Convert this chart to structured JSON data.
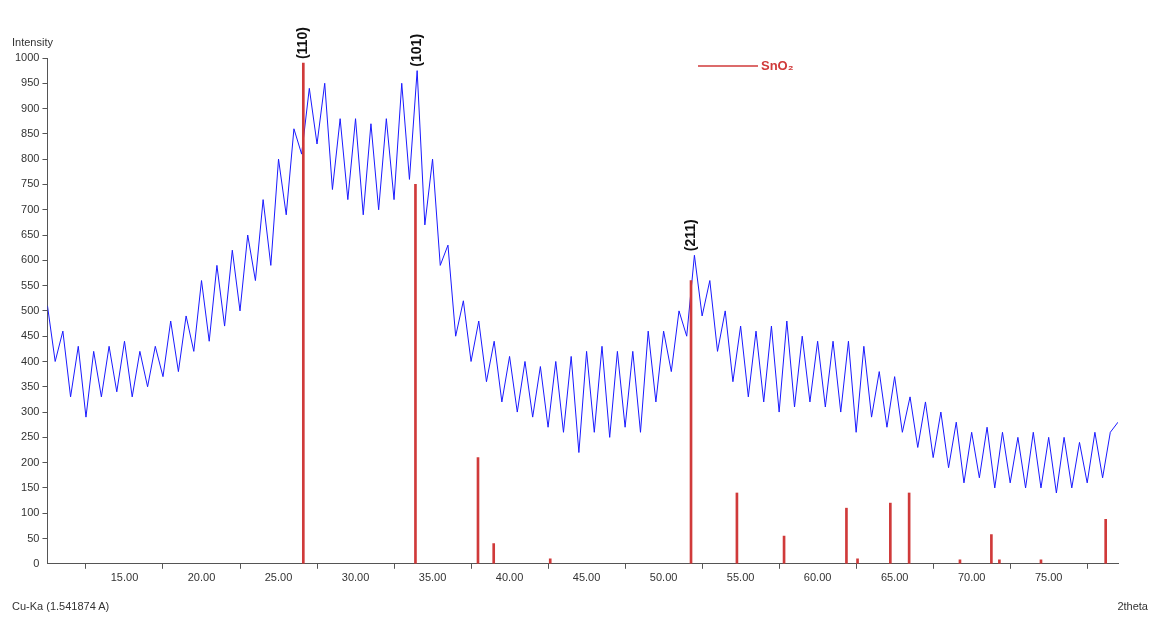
{
  "chart_data": {
    "type": "line",
    "ylabel": "Intensity",
    "xlabel": "2theta",
    "xlim": [
      10,
      79.5
    ],
    "ylim": [
      0,
      1000
    ],
    "xticks": [
      {
        "value": 15,
        "label": "15.00"
      },
      {
        "value": 20,
        "label": "20.00"
      },
      {
        "value": 25,
        "label": "25.00"
      },
      {
        "value": 30,
        "label": "30.00"
      },
      {
        "value": 35,
        "label": "35.00"
      },
      {
        "value": 40,
        "label": "40.00"
      },
      {
        "value": 45,
        "label": "45.00"
      },
      {
        "value": 50,
        "label": "50.00"
      },
      {
        "value": 55,
        "label": "55.00"
      },
      {
        "value": 60,
        "label": "60.00"
      },
      {
        "value": 65,
        "label": "65.00"
      },
      {
        "value": 70,
        "label": "70.00"
      },
      {
        "value": 75,
        "label": "75.00"
      }
    ],
    "yticks": [
      0,
      50,
      100,
      150,
      200,
      250,
      300,
      350,
      400,
      450,
      500,
      550,
      600,
      650,
      700,
      750,
      800,
      850,
      900,
      950,
      1000
    ],
    "grid": false,
    "legend": "top right",
    "marker": "none",
    "line_style": "solid",
    "x": [
      10,
      10.5,
      11,
      11.5,
      12,
      12.5,
      13,
      13.5,
      14,
      14.5,
      15,
      15.5,
      16,
      16.5,
      17,
      17.5,
      18,
      18.5,
      19,
      19.5,
      20,
      20.5,
      21,
      21.5,
      22,
      22.5,
      23,
      23.5,
      24,
      24.5,
      25,
      25.5,
      26,
      26.5,
      27,
      27.5,
      28,
      28.5,
      29,
      29.5,
      30,
      30.5,
      31,
      31.5,
      32,
      32.5,
      33,
      33.5,
      34,
      34.5,
      35,
      35.5,
      36,
      36.5,
      37,
      37.5,
      38,
      38.5,
      39,
      39.5,
      40,
      40.5,
      41,
      41.5,
      42,
      42.5,
      43,
      43.5,
      44,
      44.5,
      45,
      45.5,
      46,
      46.5,
      47,
      47.5,
      48,
      48.5,
      49,
      49.5,
      50,
      50.5,
      51,
      51.5,
      52,
      52.5,
      53,
      53.5,
      54,
      54.5,
      55,
      55.5,
      56,
      56.5,
      57,
      57.5,
      58,
      58.5,
      59,
      59.5,
      60,
      60.5,
      61,
      61.5,
      62,
      62.5,
      63,
      63.5,
      64,
      64.5,
      65,
      65.5,
      66,
      66.5,
      67,
      67.5,
      68,
      68.5,
      69,
      69.5,
      70,
      70.5,
      71,
      71.5,
      72,
      72.5,
      73,
      73.5,
      74,
      74.5,
      75,
      75.5,
      76,
      76.5,
      77,
      77.5,
      78,
      78.5,
      79,
      79.5
    ],
    "series": [
      {
        "color": "#1a1aff",
        "values": [
          510,
          400,
          460,
          330,
          430,
          290,
          420,
          330,
          430,
          340,
          440,
          330,
          420,
          350,
          430,
          370,
          480,
          380,
          490,
          420,
          560,
          440,
          590,
          470,
          620,
          500,
          650,
          560,
          720,
          590,
          800,
          690,
          860,
          810,
          940,
          830,
          950,
          740,
          880,
          720,
          880,
          690,
          870,
          700,
          880,
          720,
          950,
          760,
          975,
          670,
          800,
          590,
          630,
          450,
          520,
          400,
          480,
          360,
          440,
          320,
          410,
          300,
          400,
          290,
          390,
          270,
          400,
          260,
          410,
          220,
          420,
          260,
          430,
          250,
          420,
          270,
          420,
          260,
          460,
          320,
          460,
          380,
          500,
          450,
          610,
          490,
          560,
          420,
          500,
          360,
          470,
          330,
          460,
          320,
          470,
          300,
          480,
          310,
          450,
          320,
          440,
          310,
          440,
          300,
          440,
          260,
          430,
          290,
          380,
          270,
          370,
          260,
          330,
          230,
          320,
          210,
          300,
          190,
          280,
          160,
          260,
          170,
          270,
          150,
          260,
          160,
          250,
          150,
          260,
          150,
          250,
          140,
          250,
          150,
          240,
          160,
          260,
          170,
          260,
          280
        ]
      },
      {
        "type": "bar",
        "name": "SnO₂",
        "color": "#d03a3a",
        "x": [
          26.61,
          33.89,
          37.95,
          38.97,
          42.64,
          51.78,
          54.76,
          57.82,
          61.87,
          62.59,
          64.72,
          65.94,
          69.24,
          71.28,
          71.8,
          74.5,
          78.7
        ],
        "values": [
          990,
          750,
          210,
          40,
          10,
          560,
          140,
          55,
          110,
          10,
          120,
          140,
          8,
          58,
          8,
          8,
          88
        ]
      }
    ],
    "annotations": [
      {
        "text": "(110)",
        "x": 26.61,
        "y": 990
      },
      {
        "text": "(101)",
        "x": 34,
        "y": 975
      },
      {
        "text": "(211)",
        "x": 51.78,
        "y": 610
      },
      "Cu-Ka (1.541874 A)"
    ]
  }
}
